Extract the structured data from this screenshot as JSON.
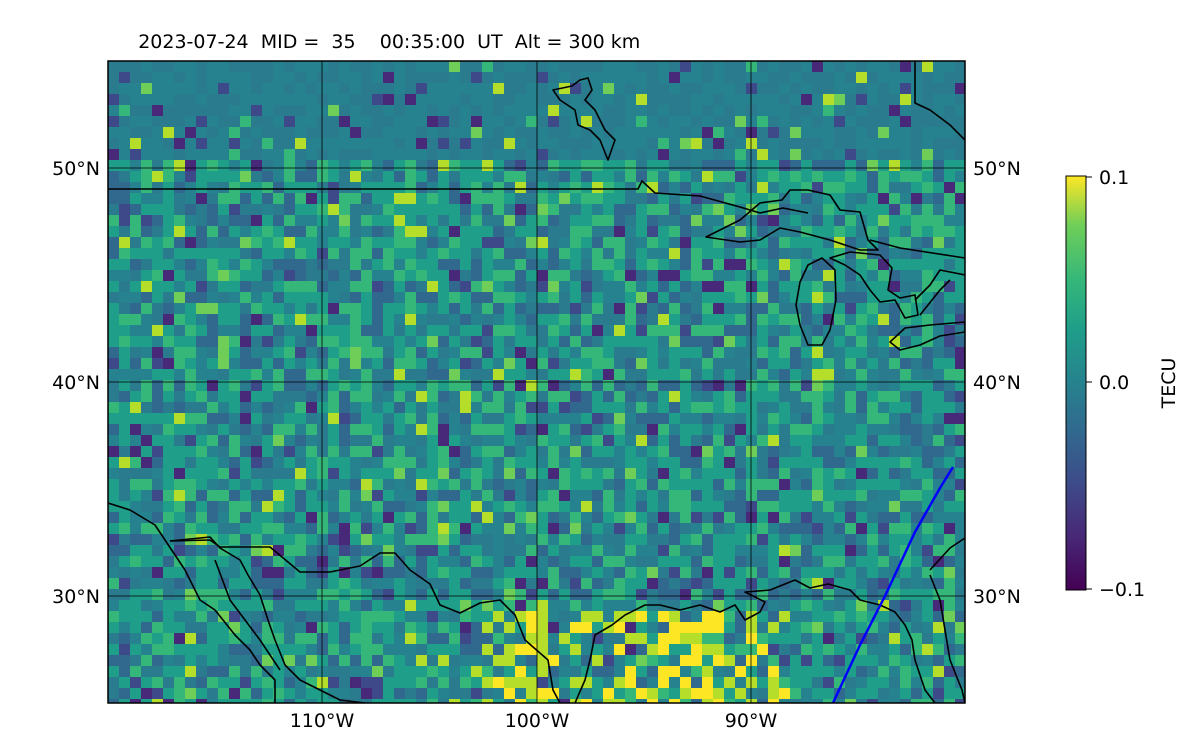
{
  "title": {
    "date": "2023-07-24",
    "mid": "MID =  35",
    "time": "00:35:00  UT",
    "alt": "Alt = 300 km"
  },
  "map": {
    "lon_range": [
      -120,
      -80
    ],
    "lat_range": [
      25,
      55
    ],
    "gridlines_lon": [
      -110,
      -100,
      -90
    ],
    "gridlines_lat": [
      30,
      40,
      50
    ],
    "lat_labels": [
      "30°N",
      "40°N",
      "50°N"
    ],
    "lon_labels": [
      "110°W",
      "100°W",
      "90°W"
    ],
    "coastline_color": "#000000",
    "track_color": "#0000ff"
  },
  "colorbar": {
    "label": "TECU",
    "colormap": "viridis",
    "min": -0.1,
    "max": 0.1,
    "ticks": [
      "0.1",
      "0.0",
      "−0.1"
    ]
  }
}
